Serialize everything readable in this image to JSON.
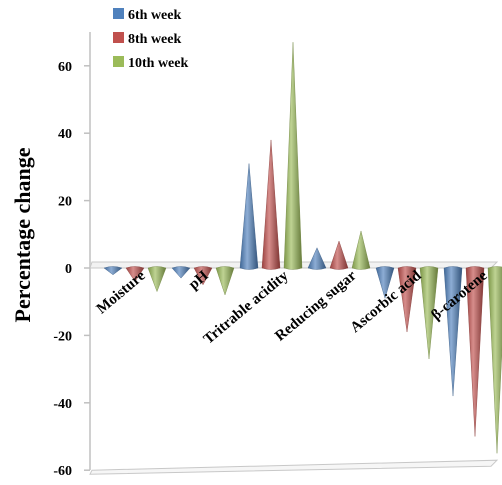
{
  "chart_data": {
    "type": "bar",
    "title": "",
    "xlabel": "",
    "ylabel": "Percentage change",
    "ylim": [
      -60,
      70
    ],
    "yticks": [
      60,
      40,
      20,
      0,
      -20,
      -40,
      -60
    ],
    "ytick_labels": [
      "60",
      "40",
      "20",
      "0",
      "-20",
      "-40",
      "-60"
    ],
    "categories": [
      "Moisture",
      "pH",
      "Tritrable acidity",
      "Reducing sugar",
      "Ascorbic acid",
      "β-carotene"
    ],
    "series": [
      {
        "name": "6th week",
        "color": "#4F81BD",
        "values": [
          -2,
          -3,
          31,
          6,
          -9,
          -38
        ]
      },
      {
        "name": "8th week",
        "color": "#C0504D",
        "values": [
          -4,
          -5,
          38,
          8,
          -19,
          -50
        ]
      },
      {
        "name": "10th week",
        "color": "#9BBB59",
        "values": [
          -7,
          -8,
          67,
          11,
          -27,
          -55
        ]
      }
    ],
    "grid": false,
    "legend_position": "top-left",
    "style": "3d-cone"
  }
}
